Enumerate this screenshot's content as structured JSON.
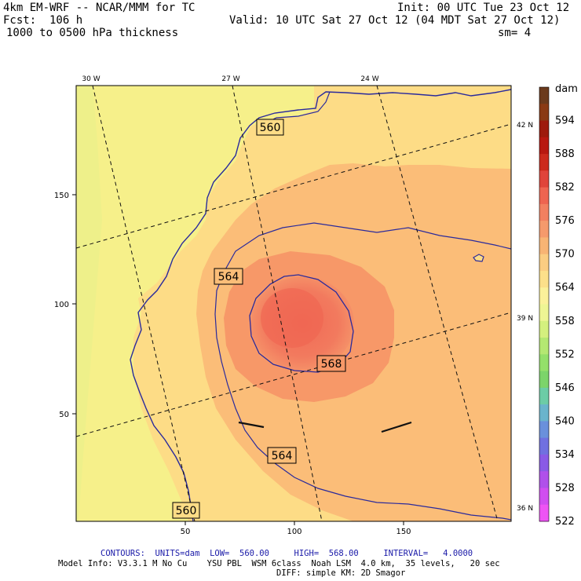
{
  "header": {
    "model": "4km EM-WRF -- NCAR/MMM for TC",
    "init": "Init: 00 UTC Tue 23 Oct 12",
    "fcst": "Fcst:  106 h",
    "valid": "Valid: 10 UTC Sat 27 Oct 12 (04 MDT Sat 27 Oct 12)",
    "field": "1000 to 0500 hPa thickness",
    "smoothing": "sm= 4"
  },
  "map": {
    "x_ticks": [
      "50",
      "100",
      "150"
    ],
    "y_ticks": [
      "150",
      "100",
      "50"
    ],
    "lon_labels": [
      "30 W",
      "27 W",
      "24 W"
    ],
    "lat_labels": [
      "42 N",
      "39 N",
      "36 N"
    ],
    "contour_labels": [
      "560",
      "564",
      "568",
      "564",
      "560"
    ],
    "colors": {
      "land_yellow": "#f6f08a",
      "ocean_light": "#fddc86",
      "ocean_mid": "#fbbd78",
      "core_outer": "#f89a6c",
      "core_inner": "#f2725a",
      "contour": "#2a2a9c",
      "coast": "#2a2a9c"
    }
  },
  "colorbar": {
    "unit": "dam",
    "labels": [
      "594",
      "588",
      "582",
      "576",
      "570",
      "564",
      "558",
      "552",
      "546",
      "540",
      "534",
      "528",
      "522"
    ],
    "colors": [
      "#6b3a1c",
      "#8a3a14",
      "#9e1a0c",
      "#b81810",
      "#cc2a1c",
      "#e0443a",
      "#ee6450",
      "#f28060",
      "#f59a6c",
      "#f8b474",
      "#fbcd82",
      "#fce08a",
      "#fbf19a",
      "#eef594",
      "#d4f07e",
      "#b4e872",
      "#94e06a",
      "#7cd46a",
      "#6ccca6",
      "#6ab4cc",
      "#6a90dc",
      "#7070e0",
      "#8a5ae6",
      "#b050ea",
      "#d04ef0",
      "#ee54f4"
    ]
  },
  "footer": {
    "contours": "CONTOURS:  UNITS=dam  LOW=  560.00     HIGH=  568.00     INTERVAL=   4.0000",
    "model_info": "Model Info: V3.3.1 M No Cu    YSU PBL  WSM 6class  Noah LSM  4.0 km,  35 levels,   20 sec",
    "diff": "DIFF: simple KM: 2D Smagor"
  }
}
